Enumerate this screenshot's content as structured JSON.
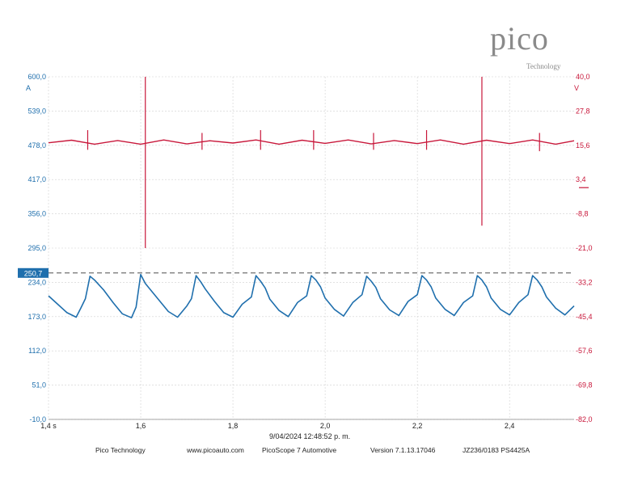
{
  "brand": {
    "logo": "pico",
    "logo_sub": "Technology"
  },
  "timestamp": "9/04/2024 12:48:52 p. m.",
  "footer": {
    "company": "Pico Technology",
    "website": "www.picoauto.com",
    "product": "PicoScope 7 Automotive",
    "version": "Version 7.1.13.17046",
    "device": "JZ236/0183 PS4425A"
  },
  "colors": {
    "current": "#1f6fad",
    "voltage": "#c8173a",
    "grid": "#d0d0d0"
  },
  "chart_data": {
    "type": "line",
    "x_ticks": [
      {
        "v": 1.4,
        "label": "1,4 s"
      },
      {
        "v": 1.6,
        "label": "1,6"
      },
      {
        "v": 1.8,
        "label": "1,8"
      },
      {
        "v": 2.0,
        "label": "2,0"
      },
      {
        "v": 2.2,
        "label": "2,2"
      },
      {
        "v": 2.4,
        "label": "2,4"
      }
    ],
    "xlim": [
      1.4,
      2.54
    ],
    "left_axis": {
      "unit": "A",
      "ylim": [
        -10,
        600
      ],
      "ticks": [
        {
          "v": 600,
          "label": "600,0"
        },
        {
          "v": 539,
          "label": "539,0"
        },
        {
          "v": 478,
          "label": "478,0"
        },
        {
          "v": 417,
          "label": "417,0"
        },
        {
          "v": 356,
          "label": "356,0"
        },
        {
          "v": 295,
          "label": "295,0"
        },
        {
          "v": 234,
          "label": "234,0"
        },
        {
          "v": 173,
          "label": "173,0"
        },
        {
          "v": 112,
          "label": "112,0"
        },
        {
          "v": 51,
          "label": "51,0"
        },
        {
          "v": -10,
          "label": "-10,0"
        }
      ]
    },
    "right_axis": {
      "unit": "V",
      "ylim": [
        -82,
        40
      ],
      "ticks": [
        {
          "v": 40,
          "label": "40,0"
        },
        {
          "v": 27.8,
          "label": "27,8"
        },
        {
          "v": 15.6,
          "label": "15,6"
        },
        {
          "v": 3.4,
          "label": "3,4"
        },
        {
          "v": -8.8,
          "label": "-8,8"
        },
        {
          "v": -21,
          "label": "-21,0"
        },
        {
          "v": -33.2,
          "label": "-33,2"
        },
        {
          "v": -45.4,
          "label": "-45,4"
        },
        {
          "v": -57.6,
          "label": "-57,6"
        },
        {
          "v": -69.8,
          "label": "-69,8"
        },
        {
          "v": -82,
          "label": "-82,0"
        }
      ]
    },
    "reference_line": {
      "value": 250.7,
      "label": "250,7"
    },
    "current_series": {
      "axis": "left",
      "x": [
        1.4,
        1.42,
        1.44,
        1.46,
        1.47,
        1.48,
        1.49,
        1.5,
        1.52,
        1.54,
        1.56,
        1.58,
        1.59,
        1.6,
        1.61,
        1.62,
        1.64,
        1.66,
        1.68,
        1.7,
        1.71,
        1.72,
        1.73,
        1.74,
        1.76,
        1.78,
        1.8,
        1.82,
        1.84,
        1.85,
        1.86,
        1.87,
        1.88,
        1.9,
        1.92,
        1.94,
        1.96,
        1.97,
        1.98,
        1.99,
        2.0,
        2.02,
        2.04,
        2.06,
        2.08,
        2.09,
        2.1,
        2.11,
        2.12,
        2.14,
        2.16,
        2.18,
        2.2,
        2.21,
        2.22,
        2.23,
        2.24,
        2.26,
        2.28,
        2.3,
        2.32,
        2.33,
        2.34,
        2.35,
        2.36,
        2.38,
        2.4,
        2.42,
        2.44,
        2.45,
        2.46,
        2.47,
        2.48,
        2.5,
        2.52,
        2.54
      ],
      "y": [
        210,
        195,
        180,
        172,
        188,
        205,
        245,
        238,
        220,
        198,
        178,
        171,
        190,
        248,
        232,
        222,
        202,
        182,
        172,
        192,
        205,
        246,
        235,
        222,
        200,
        180,
        172,
        195,
        208,
        246,
        236,
        224,
        204,
        184,
        173,
        198,
        210,
        246,
        238,
        226,
        206,
        186,
        174,
        198,
        212,
        245,
        236,
        225,
        205,
        185,
        175,
        200,
        212,
        246,
        238,
        226,
        206,
        186,
        175,
        198,
        210,
        246,
        238,
        226,
        206,
        186,
        176,
        198,
        212,
        246,
        238,
        226,
        208,
        188,
        176,
        192
      ]
    },
    "voltage_series": {
      "axis": "right",
      "x": [
        1.4,
        1.45,
        1.5,
        1.55,
        1.6,
        1.65,
        1.7,
        1.75,
        1.8,
        1.85,
        1.9,
        1.95,
        2.0,
        2.05,
        2.1,
        2.15,
        2.2,
        2.25,
        2.3,
        2.35,
        2.4,
        2.45,
        2.5,
        2.54
      ],
      "y": [
        16.5,
        17.4,
        16.0,
        17.3,
        16.0,
        17.5,
        16.1,
        17.2,
        16.4,
        17.5,
        16.0,
        17.4,
        16.3,
        17.5,
        16.1,
        17.3,
        16.2,
        17.5,
        16.0,
        17.4,
        16.2,
        17.5,
        16.0,
        17.2
      ],
      "spikes": [
        {
          "x": 1.61,
          "high": 40,
          "low": -21
        },
        {
          "x": 2.34,
          "high": 40,
          "low": -13
        },
        {
          "x": 1.485,
          "high": 21,
          "low": 14
        },
        {
          "x": 1.733,
          "high": 20,
          "low": 14
        },
        {
          "x": 1.86,
          "high": 21,
          "low": 14
        },
        {
          "x": 1.975,
          "high": 21,
          "low": 14
        },
        {
          "x": 2.105,
          "high": 20,
          "low": 14
        },
        {
          "x": 2.22,
          "high": 21,
          "low": 14
        },
        {
          "x": 2.465,
          "high": 20,
          "low": 13.5
        }
      ]
    }
  }
}
